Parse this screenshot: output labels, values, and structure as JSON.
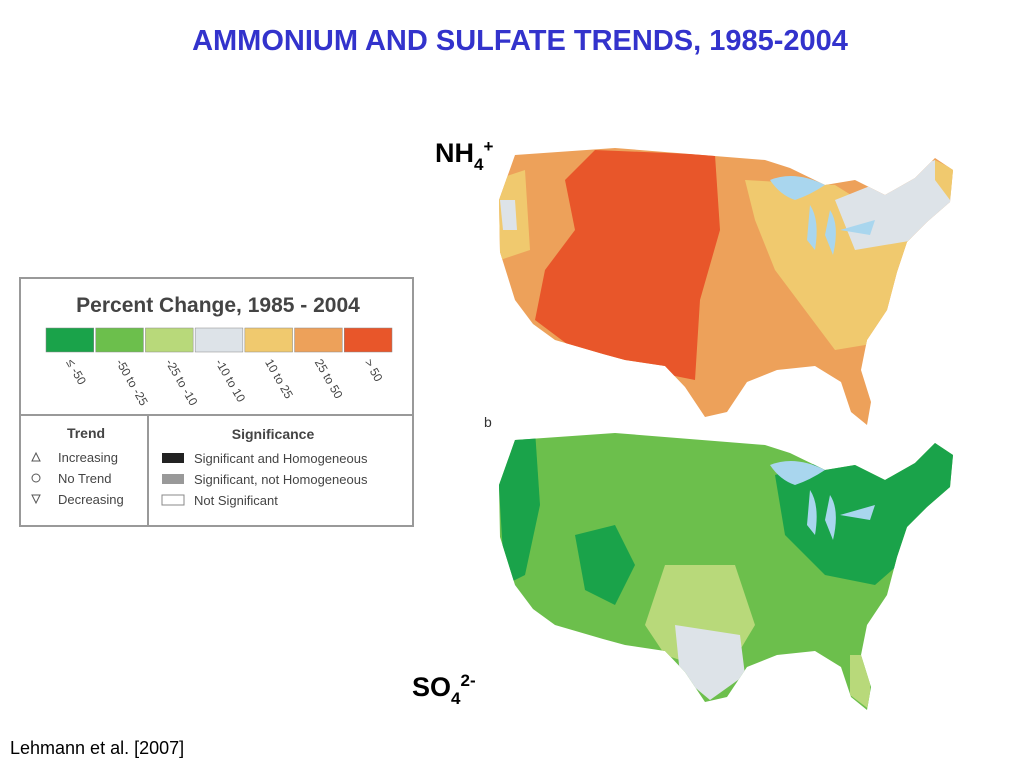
{
  "title": "AMMONIUM AND SULFATE TRENDS, 1985-2004",
  "maps": [
    {
      "label": {
        "base": "NH",
        "sub": "4",
        "sup": "+"
      }
    },
    {
      "panel": "b",
      "label": {
        "base": "SO",
        "sub": "4",
        "sup": "2-"
      }
    }
  ],
  "legend": {
    "title": "Percent Change, 1985 - 2004",
    "bins": [
      {
        "label": "≤ -50",
        "color": "#1aa34a"
      },
      {
        "label": "-50 to -25",
        "color": "#6cbf4c"
      },
      {
        "label": "-25 to -10",
        "color": "#b8d97a"
      },
      {
        "label": "-10 to 10",
        "color": "#dde3e8"
      },
      {
        "label": "10 to 25",
        "color": "#f0c96e"
      },
      {
        "label": "25 to 50",
        "color": "#eda15a"
      },
      {
        "label": "> 50",
        "color": "#e8562a"
      }
    ],
    "trend": {
      "header": "Trend",
      "items": [
        "Increasing",
        "No Trend",
        "Decreasing"
      ]
    },
    "significance": {
      "header": "Significance",
      "items": [
        "Significant and Homogeneous",
        "Significant, not Homogeneous",
        "Not Significant"
      ]
    }
  },
  "citation": "Lehmann et al. [2007]"
}
